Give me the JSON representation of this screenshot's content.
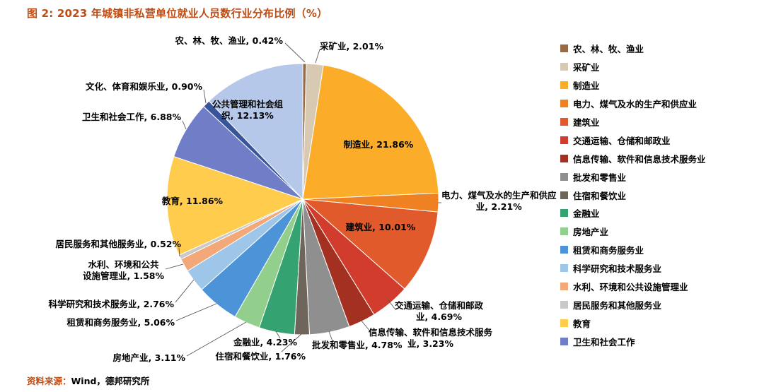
{
  "figure": {
    "title": "图 2: 2023 年城镇非私营单位就业人员数行业分布比例（%）",
    "source_prefix": "资料来源：",
    "source_text": "Wind，德邦研究所"
  },
  "theme": {
    "title_color": "#BF4B12",
    "label_color": "#000000",
    "leader_line_color": "#595959",
    "background": "#FFFFFF"
  },
  "chart_data": {
    "type": "pie",
    "title": "2023 年城镇非私营单位就业人员数行业分布比例（%）",
    "unit": "%",
    "direction": "clockwise",
    "start_angle_deg": 0,
    "legend_position": "right",
    "slices": [
      {
        "label": "农、林、牧、渔业",
        "value": 0.42,
        "color": "#9A6A45",
        "in_legend": true
      },
      {
        "label": "采矿业",
        "value": 2.01,
        "color": "#D8C9B2",
        "in_legend": true
      },
      {
        "label": "制造业",
        "value": 21.86,
        "color": "#FBAD2A",
        "in_legend": true
      },
      {
        "label": "电力、煤气及水的生产和供应业",
        "value": 2.21,
        "color": "#F08122",
        "in_legend": true
      },
      {
        "label": "建筑业",
        "value": 10.01,
        "color": "#E05A2B",
        "in_legend": true
      },
      {
        "label": "交通运输、仓储和邮政业",
        "value": 4.69,
        "color": "#D13C2C",
        "in_legend": true
      },
      {
        "label": "信息传输、软件和信息技术服务业",
        "value": 3.23,
        "color": "#A33021",
        "in_legend": true
      },
      {
        "label": "批发和零售业",
        "value": 4.78,
        "color": "#8F8F8F",
        "in_legend": true
      },
      {
        "label": "住宿和餐饮业",
        "value": 1.76,
        "color": "#6E665B",
        "in_legend": true
      },
      {
        "label": "金融业",
        "value": 4.23,
        "color": "#35A271",
        "in_legend": true
      },
      {
        "label": "房地产业",
        "value": 3.11,
        "color": "#92CE8C",
        "in_legend": true
      },
      {
        "label": "租赁和商务服务业",
        "value": 5.06,
        "color": "#4D93D8",
        "in_legend": true
      },
      {
        "label": "科学研究和技术服务业",
        "value": 2.76,
        "color": "#9EC6E8",
        "in_legend": true
      },
      {
        "label": "水利、环境和公共设施管理业",
        "value": 1.58,
        "color": "#F2A878",
        "in_legend": true
      },
      {
        "label": "居民服务和其他服务业",
        "value": 0.52,
        "color": "#C9C9C9",
        "in_legend": true
      },
      {
        "label": "教育",
        "value": 11.86,
        "color": "#FFCC4E",
        "in_legend": true
      },
      {
        "label": "卫生和社会工作",
        "value": 6.88,
        "color": "#6F7EC6",
        "in_legend": true
      },
      {
        "label": "文化、体育和娱乐业",
        "value": 0.9,
        "color": "#38549B",
        "in_legend": false
      },
      {
        "label": "公共管理和社会组织",
        "value": 12.13,
        "color": "#B5C8E9",
        "in_legend": false
      }
    ]
  }
}
